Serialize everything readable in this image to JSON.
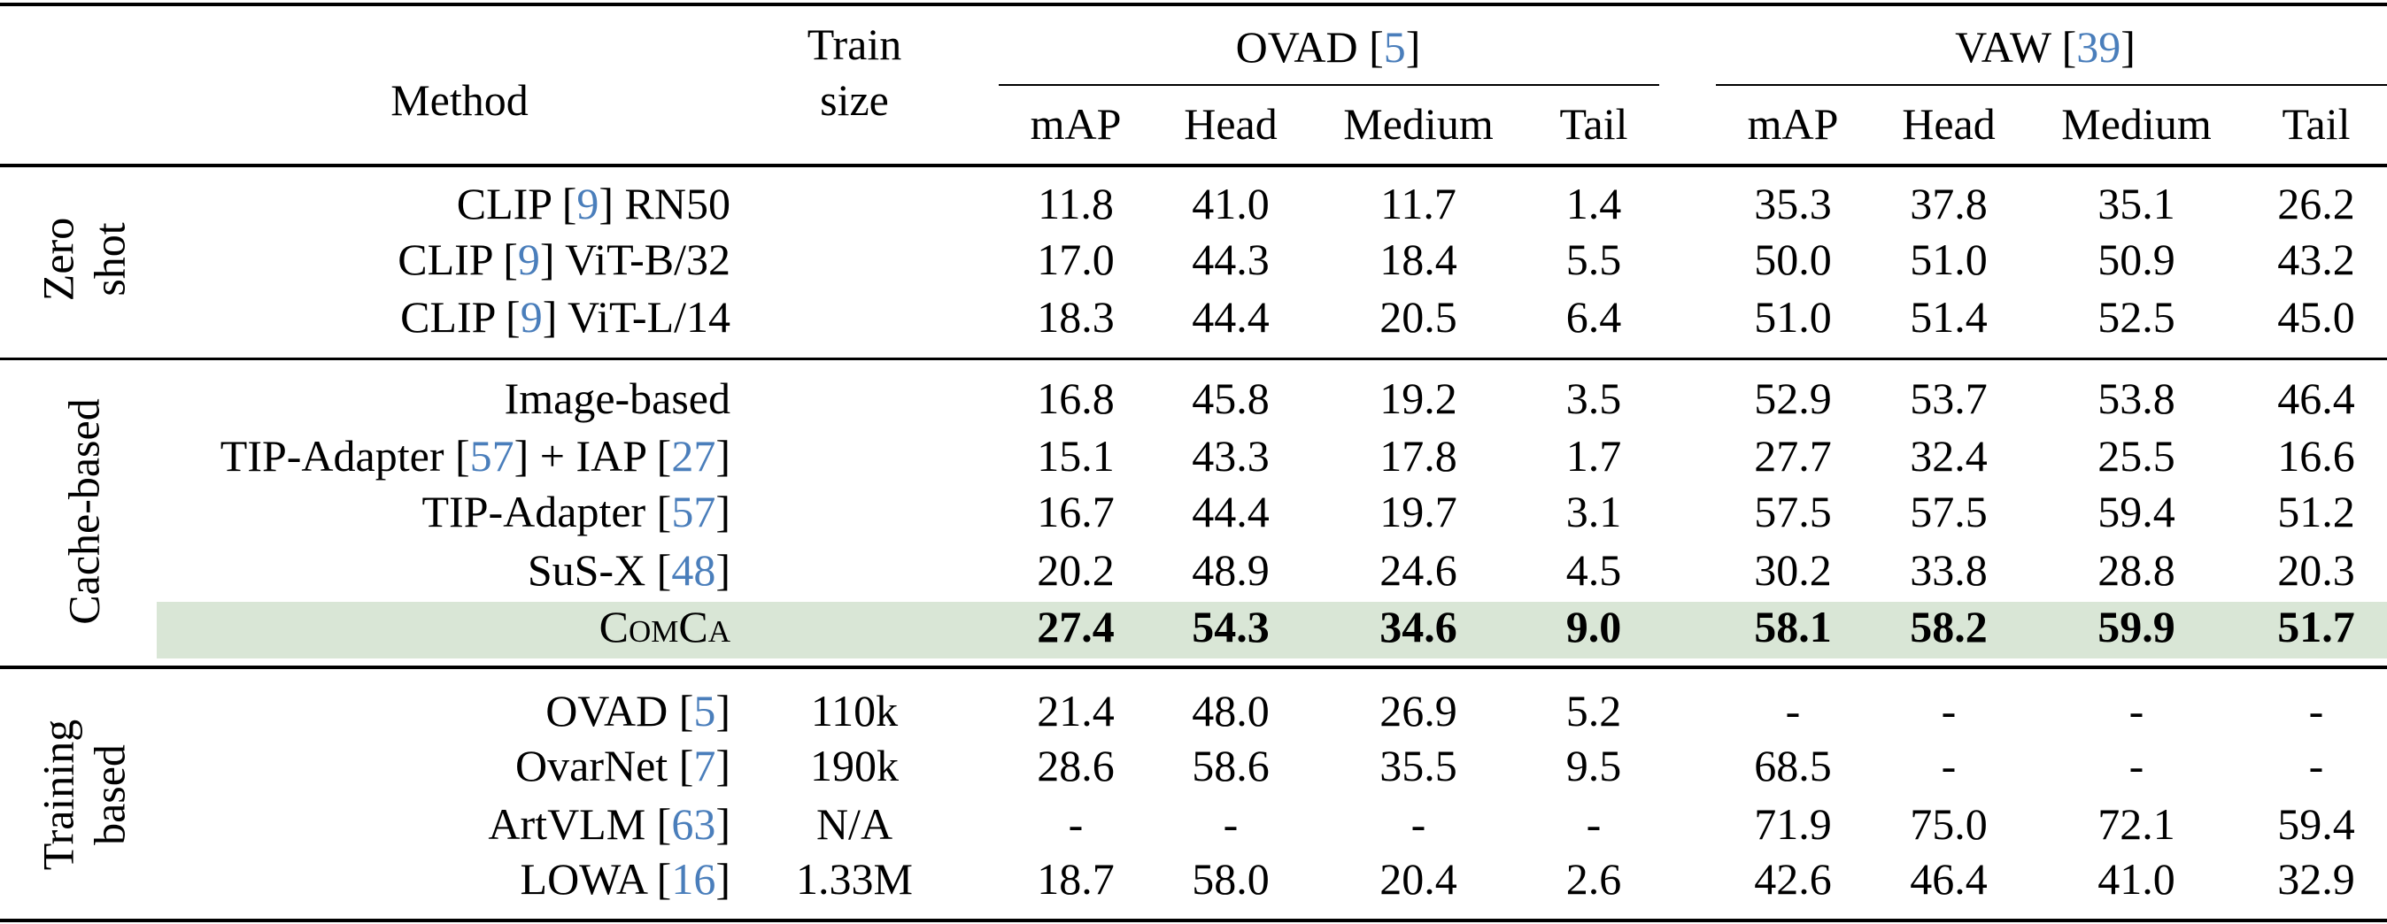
{
  "header": {
    "method": "Method",
    "train_size": [
      "Train",
      "size"
    ],
    "datasets": [
      {
        "name": "OVAD",
        "cite": "5"
      },
      {
        "name": "VAW",
        "cite": "39"
      }
    ],
    "metrics": [
      "mAP",
      "Head",
      "Medium",
      "Tail",
      "mAP",
      "Head",
      "Medium",
      "Tail"
    ]
  },
  "groups": [
    {
      "label": [
        "Zero",
        "shot"
      ]
    },
    {
      "label": [
        "Cache-based"
      ]
    },
    {
      "label": [
        "Training",
        "based"
      ]
    }
  ],
  "rows": [
    {
      "group": 0,
      "method": [
        {
          "t": "CLIP ["
        },
        {
          "c": "9"
        },
        {
          "t": "] RN50"
        }
      ],
      "train": "",
      "values": [
        "11.8",
        "41.0",
        "11.7",
        "1.4",
        "35.3",
        "37.8",
        "35.1",
        "26.2"
      ]
    },
    {
      "group": 0,
      "method": [
        {
          "t": "CLIP ["
        },
        {
          "c": "9"
        },
        {
          "t": "] ViT-B/32"
        }
      ],
      "train": "",
      "values": [
        "17.0",
        "44.3",
        "18.4",
        "5.5",
        "50.0",
        "51.0",
        "50.9",
        "43.2"
      ]
    },
    {
      "group": 0,
      "method": [
        {
          "t": "CLIP ["
        },
        {
          "c": "9"
        },
        {
          "t": "] ViT-L/14"
        }
      ],
      "train": "",
      "values": [
        "18.3",
        "44.4",
        "20.5",
        "6.4",
        "51.0",
        "51.4",
        "52.5",
        "45.0"
      ]
    },
    {
      "group": 1,
      "method": [
        {
          "t": "Image-based"
        }
      ],
      "train": "",
      "values": [
        "16.8",
        "45.8",
        "19.2",
        "3.5",
        "52.9",
        "53.7",
        "53.8",
        "46.4"
      ]
    },
    {
      "group": 1,
      "method": [
        {
          "t": "TIP-Adapter ["
        },
        {
          "c": "57"
        },
        {
          "t": "] + IAP ["
        },
        {
          "c": "27"
        },
        {
          "t": "]"
        }
      ],
      "train": "",
      "values": [
        "15.1",
        "43.3",
        "17.8",
        "1.7",
        "27.7",
        "32.4",
        "25.5",
        "16.6"
      ]
    },
    {
      "group": 1,
      "method": [
        {
          "t": "TIP-Adapter ["
        },
        {
          "c": "57"
        },
        {
          "t": "]"
        }
      ],
      "train": "",
      "values": [
        "16.7",
        "44.4",
        "19.7",
        "3.1",
        "57.5",
        "57.5",
        "59.4",
        "51.2"
      ]
    },
    {
      "group": 1,
      "method": [
        {
          "t": "SuS-X ["
        },
        {
          "c": "48"
        },
        {
          "t": "]"
        }
      ],
      "train": "",
      "values": [
        "20.2",
        "48.9",
        "24.6",
        "4.5",
        "30.2",
        "33.8",
        "28.8",
        "20.3"
      ]
    },
    {
      "group": 1,
      "highlight": true,
      "method": [
        {
          "sc": "ComCa"
        }
      ],
      "train": "",
      "values": [
        "27.4",
        "54.3",
        "34.6",
        "9.0",
        "58.1",
        "58.2",
        "59.9",
        "51.7"
      ]
    },
    {
      "group": 2,
      "method": [
        {
          "t": "OVAD ["
        },
        {
          "c": "5"
        },
        {
          "t": "]"
        }
      ],
      "train": "110k",
      "values": [
        "21.4",
        "48.0",
        "26.9",
        "5.2",
        "-",
        "-",
        "-",
        "-"
      ]
    },
    {
      "group": 2,
      "method": [
        {
          "t": "OvarNet ["
        },
        {
          "c": "7"
        },
        {
          "t": "]"
        }
      ],
      "train": "190k",
      "values": [
        "28.6",
        "58.6",
        "35.5",
        "9.5",
        "68.5",
        "-",
        "-",
        "-"
      ]
    },
    {
      "group": 2,
      "method": [
        {
          "t": "ArtVLM ["
        },
        {
          "c": "63"
        },
        {
          "t": "]"
        }
      ],
      "train": "N/A",
      "values": [
        "-",
        "-",
        "-",
        "-",
        "71.9",
        "75.0",
        "72.1",
        "59.4"
      ]
    },
    {
      "group": 2,
      "method": [
        {
          "t": "LOWA ["
        },
        {
          "c": "16"
        },
        {
          "t": "]"
        }
      ],
      "train": "1.33M",
      "values": [
        "18.7",
        "58.0",
        "20.4",
        "2.6",
        "42.6",
        "46.4",
        "41.0",
        "32.9"
      ]
    }
  ],
  "colors": {
    "cite": "#4a7ebb",
    "highlight": "#d9e6d6"
  }
}
